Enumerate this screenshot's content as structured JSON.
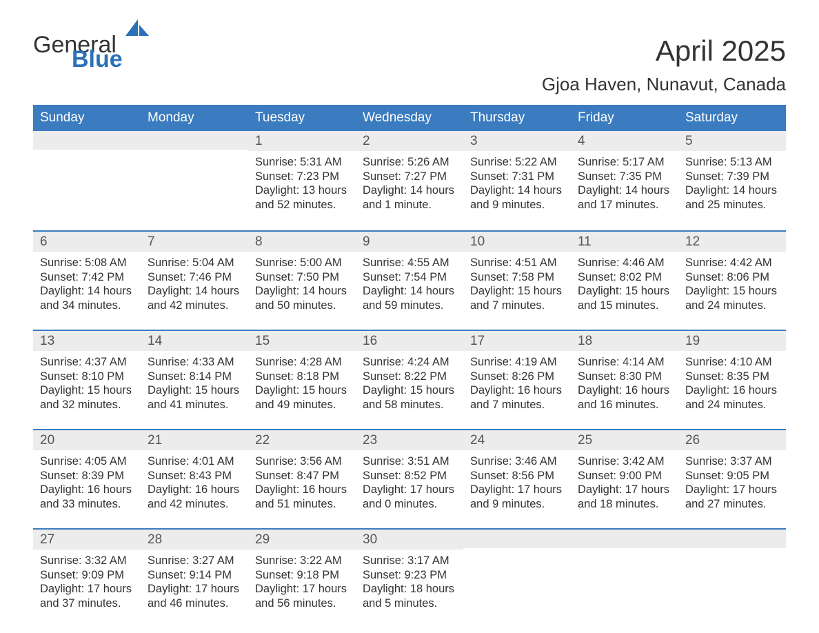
{
  "logo": {
    "text1": "General",
    "text2": "Blue",
    "sail_color": "#2a71b8"
  },
  "title": "April 2025",
  "subtitle": "Gjoa Haven, Nunavut, Canada",
  "colors": {
    "header_bg": "#3b7bbf",
    "header_text": "#ffffff",
    "daynum_bg": "#ececec",
    "border": "#3b7bbf",
    "text": "#333333",
    "logo_accent": "#2a71b8"
  },
  "typography": {
    "title_fontsize": 42,
    "subtitle_fontsize": 26,
    "header_fontsize": 19,
    "daynum_fontsize": 19,
    "body_fontsize": 16.5
  },
  "day_names": [
    "Sunday",
    "Monday",
    "Tuesday",
    "Wednesday",
    "Thursday",
    "Friday",
    "Saturday"
  ],
  "weeks": [
    [
      null,
      null,
      {
        "n": "1",
        "sunrise": "5:31 AM",
        "sunset": "7:23 PM",
        "dl1": "13 hours",
        "dl2": "and 52 minutes."
      },
      {
        "n": "2",
        "sunrise": "5:26 AM",
        "sunset": "7:27 PM",
        "dl1": "14 hours",
        "dl2": "and 1 minute."
      },
      {
        "n": "3",
        "sunrise": "5:22 AM",
        "sunset": "7:31 PM",
        "dl1": "14 hours",
        "dl2": "and 9 minutes."
      },
      {
        "n": "4",
        "sunrise": "5:17 AM",
        "sunset": "7:35 PM",
        "dl1": "14 hours",
        "dl2": "and 17 minutes."
      },
      {
        "n": "5",
        "sunrise": "5:13 AM",
        "sunset": "7:39 PM",
        "dl1": "14 hours",
        "dl2": "and 25 minutes."
      }
    ],
    [
      {
        "n": "6",
        "sunrise": "5:08 AM",
        "sunset": "7:42 PM",
        "dl1": "14 hours",
        "dl2": "and 34 minutes."
      },
      {
        "n": "7",
        "sunrise": "5:04 AM",
        "sunset": "7:46 PM",
        "dl1": "14 hours",
        "dl2": "and 42 minutes."
      },
      {
        "n": "8",
        "sunrise": "5:00 AM",
        "sunset": "7:50 PM",
        "dl1": "14 hours",
        "dl2": "and 50 minutes."
      },
      {
        "n": "9",
        "sunrise": "4:55 AM",
        "sunset": "7:54 PM",
        "dl1": "14 hours",
        "dl2": "and 59 minutes."
      },
      {
        "n": "10",
        "sunrise": "4:51 AM",
        "sunset": "7:58 PM",
        "dl1": "15 hours",
        "dl2": "and 7 minutes."
      },
      {
        "n": "11",
        "sunrise": "4:46 AM",
        "sunset": "8:02 PM",
        "dl1": "15 hours",
        "dl2": "and 15 minutes."
      },
      {
        "n": "12",
        "sunrise": "4:42 AM",
        "sunset": "8:06 PM",
        "dl1": "15 hours",
        "dl2": "and 24 minutes."
      }
    ],
    [
      {
        "n": "13",
        "sunrise": "4:37 AM",
        "sunset": "8:10 PM",
        "dl1": "15 hours",
        "dl2": "and 32 minutes."
      },
      {
        "n": "14",
        "sunrise": "4:33 AM",
        "sunset": "8:14 PM",
        "dl1": "15 hours",
        "dl2": "and 41 minutes."
      },
      {
        "n": "15",
        "sunrise": "4:28 AM",
        "sunset": "8:18 PM",
        "dl1": "15 hours",
        "dl2": "and 49 minutes."
      },
      {
        "n": "16",
        "sunrise": "4:24 AM",
        "sunset": "8:22 PM",
        "dl1": "15 hours",
        "dl2": "and 58 minutes."
      },
      {
        "n": "17",
        "sunrise": "4:19 AM",
        "sunset": "8:26 PM",
        "dl1": "16 hours",
        "dl2": "and 7 minutes."
      },
      {
        "n": "18",
        "sunrise": "4:14 AM",
        "sunset": "8:30 PM",
        "dl1": "16 hours",
        "dl2": "and 16 minutes."
      },
      {
        "n": "19",
        "sunrise": "4:10 AM",
        "sunset": "8:35 PM",
        "dl1": "16 hours",
        "dl2": "and 24 minutes."
      }
    ],
    [
      {
        "n": "20",
        "sunrise": "4:05 AM",
        "sunset": "8:39 PM",
        "dl1": "16 hours",
        "dl2": "and 33 minutes."
      },
      {
        "n": "21",
        "sunrise": "4:01 AM",
        "sunset": "8:43 PM",
        "dl1": "16 hours",
        "dl2": "and 42 minutes."
      },
      {
        "n": "22",
        "sunrise": "3:56 AM",
        "sunset": "8:47 PM",
        "dl1": "16 hours",
        "dl2": "and 51 minutes."
      },
      {
        "n": "23",
        "sunrise": "3:51 AM",
        "sunset": "8:52 PM",
        "dl1": "17 hours",
        "dl2": "and 0 minutes."
      },
      {
        "n": "24",
        "sunrise": "3:46 AM",
        "sunset": "8:56 PM",
        "dl1": "17 hours",
        "dl2": "and 9 minutes."
      },
      {
        "n": "25",
        "sunrise": "3:42 AM",
        "sunset": "9:00 PM",
        "dl1": "17 hours",
        "dl2": "and 18 minutes."
      },
      {
        "n": "26",
        "sunrise": "3:37 AM",
        "sunset": "9:05 PM",
        "dl1": "17 hours",
        "dl2": "and 27 minutes."
      }
    ],
    [
      {
        "n": "27",
        "sunrise": "3:32 AM",
        "sunset": "9:09 PM",
        "dl1": "17 hours",
        "dl2": "and 37 minutes."
      },
      {
        "n": "28",
        "sunrise": "3:27 AM",
        "sunset": "9:14 PM",
        "dl1": "17 hours",
        "dl2": "and 46 minutes."
      },
      {
        "n": "29",
        "sunrise": "3:22 AM",
        "sunset": "9:18 PM",
        "dl1": "17 hours",
        "dl2": "and 56 minutes."
      },
      {
        "n": "30",
        "sunrise": "3:17 AM",
        "sunset": "9:23 PM",
        "dl1": "18 hours",
        "dl2": "and 5 minutes."
      },
      null,
      null,
      null
    ]
  ],
  "labels": {
    "sunrise": "Sunrise:",
    "sunset": "Sunset:",
    "daylight": "Daylight:"
  }
}
